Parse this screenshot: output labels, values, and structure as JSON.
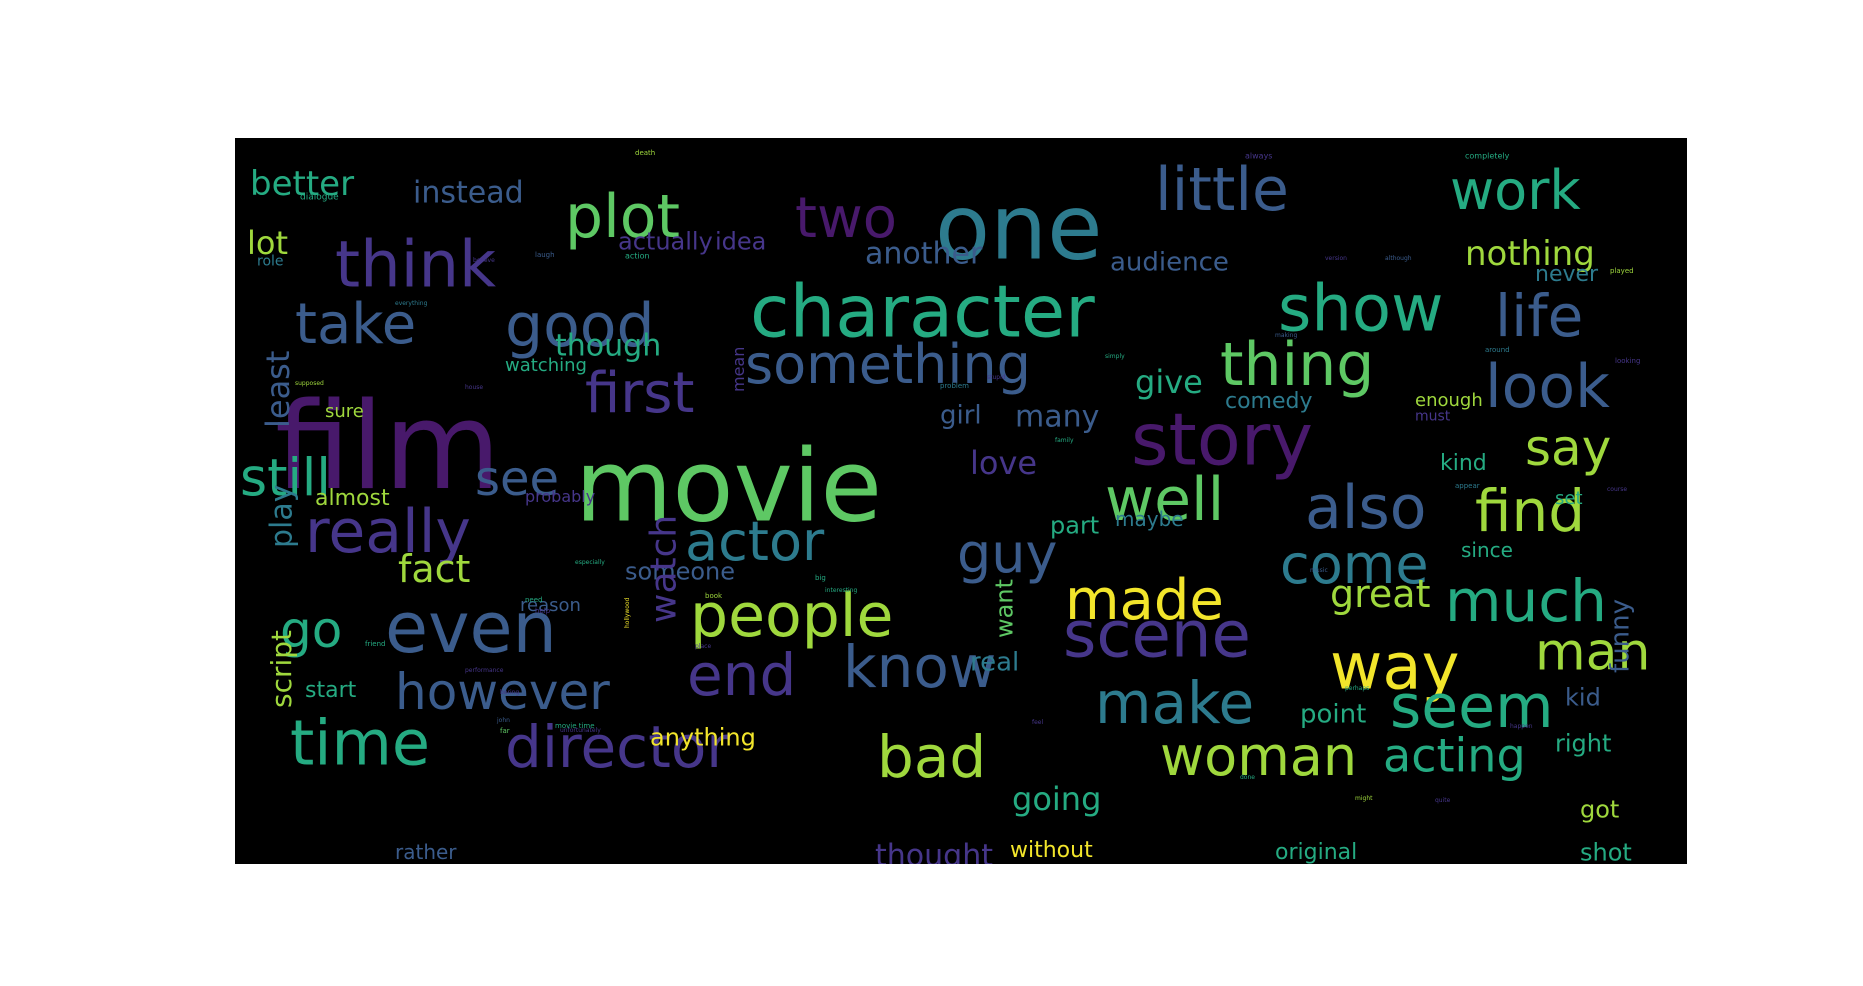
{
  "colors": {
    "page_background": "#ffffff",
    "cloud_background": "#000000",
    "palette": {
      "yellow": "#f2e52b",
      "lime": "#9fd83d",
      "green": "#5ec864",
      "teal": "#25ab82",
      "cyan": "#21908d",
      "steel": "#2d7b8e",
      "blue": "#3b5c8c",
      "indigo": "#46368a",
      "purple": "#48196b"
    }
  },
  "words": [
    {
      "text": "film",
      "color": "purple"
    },
    {
      "text": "movie",
      "color": "green"
    },
    {
      "text": "one",
      "color": "steel"
    },
    {
      "text": "character",
      "color": "teal"
    },
    {
      "text": "show",
      "color": "teal"
    },
    {
      "text": "story",
      "color": "purple"
    },
    {
      "text": "think",
      "color": "indigo"
    },
    {
      "text": "plot",
      "color": "green"
    },
    {
      "text": "two",
      "color": "purple"
    },
    {
      "text": "little",
      "color": "blue"
    },
    {
      "text": "work",
      "color": "teal"
    },
    {
      "text": "take",
      "color": "blue"
    },
    {
      "text": "good",
      "color": "blue"
    },
    {
      "text": "something",
      "color": "blue"
    },
    {
      "text": "thing",
      "color": "green"
    },
    {
      "text": "life",
      "color": "blue"
    },
    {
      "text": "first",
      "color": "indigo"
    },
    {
      "text": "look",
      "color": "blue"
    },
    {
      "text": "say",
      "color": "lime"
    },
    {
      "text": "still",
      "color": "teal"
    },
    {
      "text": "see",
      "color": "blue"
    },
    {
      "text": "well",
      "color": "green"
    },
    {
      "text": "really",
      "color": "indigo"
    },
    {
      "text": "also",
      "color": "blue"
    },
    {
      "text": "find",
      "color": "lime"
    },
    {
      "text": "actor",
      "color": "steel"
    },
    {
      "text": "guy",
      "color": "blue"
    },
    {
      "text": "come",
      "color": "steel"
    },
    {
      "text": "made",
      "color": "yellow"
    },
    {
      "text": "much",
      "color": "teal"
    },
    {
      "text": "people",
      "color": "lime"
    },
    {
      "text": "go",
      "color": "teal"
    },
    {
      "text": "even",
      "color": "blue"
    },
    {
      "text": "scene",
      "color": "indigo"
    },
    {
      "text": "way",
      "color": "yellow"
    },
    {
      "text": "man",
      "color": "lime"
    },
    {
      "text": "end",
      "color": "indigo"
    },
    {
      "text": "know",
      "color": "blue"
    },
    {
      "text": "however",
      "color": "blue"
    },
    {
      "text": "make",
      "color": "steel"
    },
    {
      "text": "seem",
      "color": "teal"
    },
    {
      "text": "time",
      "color": "teal"
    },
    {
      "text": "director",
      "color": "indigo"
    },
    {
      "text": "bad",
      "color": "lime"
    },
    {
      "text": "woman",
      "color": "lime"
    },
    {
      "text": "acting",
      "color": "teal"
    },
    {
      "text": "better",
      "color": "teal"
    },
    {
      "text": "instead",
      "color": "blue"
    },
    {
      "text": "lot",
      "color": "lime"
    },
    {
      "text": "actually",
      "color": "indigo"
    },
    {
      "text": "idea",
      "color": "indigo"
    },
    {
      "text": "another",
      "color": "blue"
    },
    {
      "text": "audience",
      "color": "blue"
    },
    {
      "text": "nothing",
      "color": "lime"
    },
    {
      "text": "never",
      "color": "steel"
    },
    {
      "text": "though",
      "color": "teal"
    },
    {
      "text": "give",
      "color": "teal"
    },
    {
      "text": "girl",
      "color": "blue"
    },
    {
      "text": "many",
      "color": "blue"
    },
    {
      "text": "love",
      "color": "indigo"
    },
    {
      "text": "comedy",
      "color": "steel"
    },
    {
      "text": "least",
      "color": "blue"
    },
    {
      "text": "watching",
      "color": "teal"
    },
    {
      "text": "sure",
      "color": "lime"
    },
    {
      "text": "almost",
      "color": "lime"
    },
    {
      "text": "play",
      "color": "steel"
    },
    {
      "text": "probably",
      "color": "indigo"
    },
    {
      "text": "part",
      "color": "teal"
    },
    {
      "text": "maybe",
      "color": "steel"
    },
    {
      "text": "kind",
      "color": "teal"
    },
    {
      "text": "set",
      "color": "teal"
    },
    {
      "text": "since",
      "color": "teal"
    },
    {
      "text": "fact",
      "color": "lime"
    },
    {
      "text": "someone",
      "color": "blue"
    },
    {
      "text": "watch",
      "color": "indigo"
    },
    {
      "text": "great",
      "color": "lime"
    },
    {
      "text": "reason",
      "color": "blue"
    },
    {
      "text": "want",
      "color": "green"
    },
    {
      "text": "real",
      "color": "steel"
    },
    {
      "text": "funny",
      "color": "blue"
    },
    {
      "text": "kid",
      "color": "blue"
    },
    {
      "text": "script",
      "color": "lime"
    },
    {
      "text": "start",
      "color": "teal"
    },
    {
      "text": "anything",
      "color": "yellow"
    },
    {
      "text": "point",
      "color": "teal"
    },
    {
      "text": "right",
      "color": "teal"
    },
    {
      "text": "going",
      "color": "teal"
    },
    {
      "text": "got",
      "color": "lime"
    },
    {
      "text": "thought",
      "color": "indigo"
    },
    {
      "text": "rather",
      "color": "blue"
    },
    {
      "text": "without",
      "color": "yellow"
    },
    {
      "text": "original",
      "color": "teal"
    },
    {
      "text": "shot",
      "color": "teal"
    },
    {
      "text": "mean",
      "color": "indigo"
    },
    {
      "text": "enough",
      "color": "lime"
    },
    {
      "text": "must",
      "color": "indigo"
    },
    {
      "text": "role",
      "color": "steel"
    },
    {
      "text": "dialogue",
      "color": "teal"
    },
    {
      "text": "death",
      "color": "lime"
    },
    {
      "text": "always",
      "color": "indigo"
    },
    {
      "text": "completely",
      "color": "teal"
    },
    {
      "text": "believe",
      "color": "indigo"
    },
    {
      "text": "action",
      "color": "teal"
    },
    {
      "text": "laugh",
      "color": "blue"
    },
    {
      "text": "version",
      "color": "indigo"
    },
    {
      "text": "although",
      "color": "blue"
    },
    {
      "text": "played",
      "color": "lime"
    },
    {
      "text": "house",
      "color": "indigo"
    },
    {
      "text": "making",
      "color": "blue"
    },
    {
      "text": "around",
      "color": "steel"
    },
    {
      "text": "looking",
      "color": "indigo"
    },
    {
      "text": "problem",
      "color": "steel"
    },
    {
      "text": "simply",
      "color": "teal"
    },
    {
      "text": "stupid",
      "color": "indigo"
    },
    {
      "text": "family",
      "color": "teal"
    },
    {
      "text": "hollywood",
      "color": "yellow"
    },
    {
      "text": "performance",
      "color": "indigo"
    },
    {
      "text": "friend",
      "color": "teal"
    },
    {
      "text": "boring",
      "color": "indigo"
    },
    {
      "text": "unfortunately",
      "color": "indigo"
    },
    {
      "text": "interesting",
      "color": "teal"
    },
    {
      "text": "music",
      "color": "blue"
    },
    {
      "text": "perhaps",
      "color": "teal"
    },
    {
      "text": "especially",
      "color": "teal"
    },
    {
      "text": "book",
      "color": "lime"
    },
    {
      "text": "big",
      "color": "teal"
    },
    {
      "text": "happen",
      "color": "indigo"
    },
    {
      "text": "movie time",
      "color": "teal"
    },
    {
      "text": "far",
      "color": "green"
    },
    {
      "text": "john",
      "color": "blue"
    },
    {
      "text": "everything",
      "color": "steel"
    },
    {
      "text": "supposed",
      "color": "lime"
    },
    {
      "text": "appear",
      "color": "steel"
    },
    {
      "text": "course",
      "color": "indigo"
    },
    {
      "text": "help",
      "color": "indigo"
    },
    {
      "text": "need",
      "color": "teal"
    },
    {
      "text": "place",
      "color": "indigo"
    },
    {
      "text": "feel",
      "color": "indigo"
    },
    {
      "text": "done",
      "color": "teal"
    },
    {
      "text": "might",
      "color": "lime"
    },
    {
      "text": "quite",
      "color": "indigo"
    }
  ]
}
